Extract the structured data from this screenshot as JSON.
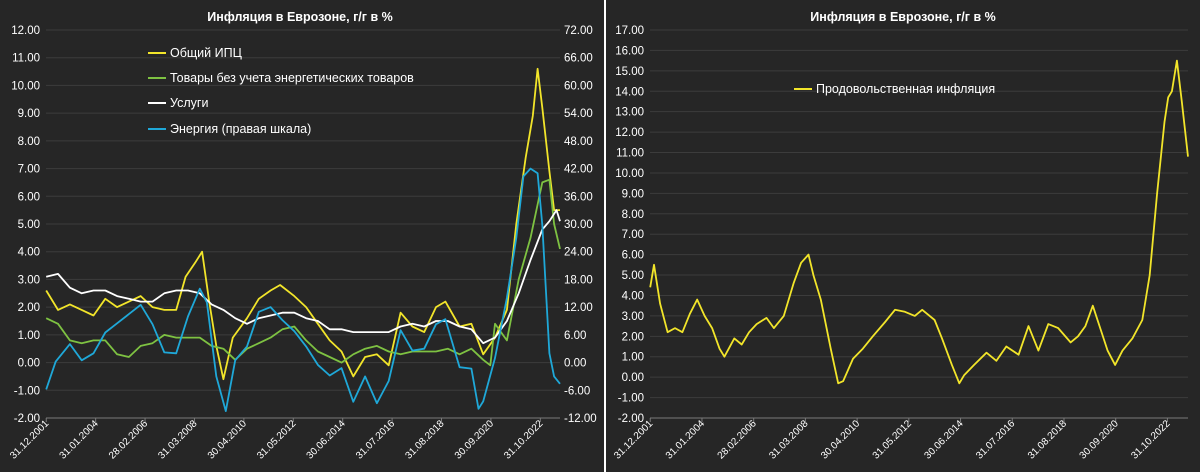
{
  "chart_data": [
    {
      "type": "line",
      "title": "Инфляция в Еврозоне, г/г в %",
      "x_tick_labels": [
        "31.12.2001",
        "31.01.2004",
        "28.02.2006",
        "31.03.2008",
        "30.04.2010",
        "31.05.2012",
        "30.06.2014",
        "31.07.2016",
        "31.08.2018",
        "30.09.2020",
        "31.10.2022"
      ],
      "x_range": [
        2001.99,
        2023.75
      ],
      "ylim_left": [
        -2,
        12
      ],
      "yticks_left": [
        "-2.00",
        "-1.00",
        "0.00",
        "1.00",
        "2.00",
        "3.00",
        "4.00",
        "5.00",
        "6.00",
        "7.00",
        "8.00",
        "9.00",
        "10.00",
        "11.00",
        "12.00"
      ],
      "ylim_right": [
        -12,
        72
      ],
      "yticks_right": [
        "-12.00",
        "-6.00",
        "0.00",
        "6.00",
        "12.00",
        "18.00",
        "24.00",
        "30.00",
        "36.00",
        "42.00",
        "48.00",
        "54.00",
        "60.00",
        "66.00",
        "72.00"
      ],
      "legend_position": "top-center",
      "series": [
        {
          "name": "Общий ИПЦ",
          "color": "#f2e52a",
          "axis": "left",
          "x": [
            2002.0,
            2002.5,
            2003.0,
            2003.5,
            2004.0,
            2004.5,
            2005.0,
            2005.5,
            2006.0,
            2006.5,
            2007.0,
            2007.5,
            2007.9,
            2008.3,
            2008.6,
            2008.9,
            2009.2,
            2009.5,
            2009.9,
            2010.5,
            2011.0,
            2011.5,
            2011.9,
            2012.5,
            2013.0,
            2013.5,
            2014.0,
            2014.5,
            2015.0,
            2015.5,
            2016.0,
            2016.5,
            2017.0,
            2017.5,
            2018.0,
            2018.5,
            2018.9,
            2019.5,
            2020.0,
            2020.5,
            2021.0,
            2021.5,
            2021.9,
            2022.3,
            2022.6,
            2022.8,
            2023.0,
            2023.3,
            2023.5,
            2023.75
          ],
          "values": [
            2.6,
            1.9,
            2.1,
            1.9,
            1.7,
            2.3,
            2.0,
            2.2,
            2.4,
            2.0,
            1.9,
            1.9,
            3.1,
            3.6,
            4.0,
            2.2,
            0.6,
            -0.6,
            0.9,
            1.6,
            2.3,
            2.6,
            2.8,
            2.4,
            2.0,
            1.4,
            0.8,
            0.4,
            -0.5,
            0.2,
            0.3,
            -0.1,
            1.8,
            1.3,
            1.1,
            2.0,
            2.2,
            1.3,
            1.4,
            0.3,
            0.9,
            1.9,
            5.0,
            7.4,
            8.9,
            10.6,
            9.2,
            6.9,
            5.5,
            5.5
          ]
        },
        {
          "name": "Товары без учета энергетических товаров",
          "color": "#7ec242",
          "axis": "left",
          "x": [
            2002.0,
            2002.5,
            2003.0,
            2003.5,
            2004.0,
            2004.5,
            2005.0,
            2005.5,
            2006.0,
            2006.5,
            2007.0,
            2007.5,
            2008.0,
            2008.5,
            2009.0,
            2009.5,
            2010.0,
            2010.5,
            2011.0,
            2011.5,
            2012.0,
            2012.5,
            2013.0,
            2013.5,
            2014.0,
            2014.5,
            2015.0,
            2015.5,
            2016.0,
            2016.5,
            2017.0,
            2017.5,
            2018.0,
            2018.5,
            2019.0,
            2019.5,
            2020.0,
            2020.5,
            2020.8,
            2021.0,
            2021.5,
            2022.0,
            2022.5,
            2023.0,
            2023.3,
            2023.5,
            2023.75
          ],
          "values": [
            1.6,
            1.4,
            0.8,
            0.7,
            0.8,
            0.8,
            0.3,
            0.2,
            0.6,
            0.7,
            1.0,
            0.9,
            0.9,
            0.9,
            0.6,
            0.5,
            0.1,
            0.5,
            0.7,
            0.9,
            1.2,
            1.3,
            0.8,
            0.4,
            0.2,
            0.0,
            0.3,
            0.5,
            0.6,
            0.4,
            0.3,
            0.4,
            0.4,
            0.4,
            0.5,
            0.3,
            0.5,
            0.1,
            -0.1,
            1.4,
            0.8,
            3.0,
            4.5,
            6.5,
            6.6,
            5.0,
            4.1
          ]
        },
        {
          "name": "Услуги",
          "color": "#ffffff",
          "axis": "left",
          "x": [
            2002.0,
            2002.5,
            2003.0,
            2003.5,
            2004.0,
            2004.5,
            2005.0,
            2005.5,
            2006.0,
            2006.5,
            2007.0,
            2007.5,
            2008.0,
            2008.5,
            2009.0,
            2009.5,
            2010.0,
            2010.5,
            2011.0,
            2011.5,
            2012.0,
            2012.5,
            2013.0,
            2013.5,
            2014.0,
            2014.5,
            2015.0,
            2015.5,
            2016.0,
            2016.5,
            2017.0,
            2017.5,
            2018.0,
            2018.5,
            2019.0,
            2019.5,
            2020.0,
            2020.5,
            2021.0,
            2021.5,
            2022.0,
            2022.5,
            2023.0,
            2023.3,
            2023.6,
            2023.75
          ],
          "values": [
            3.1,
            3.2,
            2.7,
            2.5,
            2.6,
            2.6,
            2.4,
            2.3,
            2.2,
            2.2,
            2.5,
            2.6,
            2.6,
            2.5,
            2.1,
            1.9,
            1.6,
            1.4,
            1.6,
            1.7,
            1.8,
            1.8,
            1.6,
            1.5,
            1.2,
            1.2,
            1.1,
            1.1,
            1.1,
            1.1,
            1.3,
            1.4,
            1.3,
            1.5,
            1.5,
            1.3,
            1.2,
            0.7,
            0.9,
            1.5,
            2.5,
            3.7,
            4.8,
            5.1,
            5.5,
            5.1
          ]
        },
        {
          "name": "Энергия (правая шкала)",
          "color": "#1fa8d8",
          "axis": "right",
          "x": [
            2002.0,
            2002.4,
            2003.0,
            2003.5,
            2004.0,
            2004.5,
            2005.0,
            2005.5,
            2006.0,
            2006.5,
            2007.0,
            2007.5,
            2008.0,
            2008.5,
            2008.8,
            2009.2,
            2009.6,
            2010.0,
            2010.5,
            2011.0,
            2011.5,
            2012.0,
            2012.5,
            2013.0,
            2013.5,
            2014.0,
            2014.5,
            2015.0,
            2015.5,
            2016.0,
            2016.5,
            2017.0,
            2017.5,
            2018.0,
            2018.5,
            2018.9,
            2019.5,
            2020.0,
            2020.3,
            2020.5,
            2021.0,
            2021.5,
            2021.9,
            2022.2,
            2022.5,
            2022.8,
            2023.0,
            2023.3,
            2023.5,
            2023.75
          ],
          "values": [
            -5.8,
            0.2,
            4.0,
            0.5,
            2.0,
            6.5,
            8.5,
            10.5,
            12.5,
            8.3,
            2.2,
            2.0,
            10.0,
            16.0,
            13.0,
            -3.0,
            -10.5,
            0.5,
            3.5,
            11.0,
            12.0,
            9.2,
            6.8,
            3.5,
            -0.5,
            -2.8,
            -1.2,
            -8.5,
            -3.0,
            -8.8,
            -4.0,
            7.0,
            2.6,
            3.0,
            8.3,
            9.4,
            -1.0,
            -1.3,
            -10.0,
            -8.4,
            1.0,
            14.0,
            27.0,
            40.3,
            42.0,
            41.0,
            29.8,
            2.0,
            -3.0,
            -4.6
          ]
        }
      ]
    },
    {
      "type": "line",
      "title": "Инфляция в Еврозоне, г/г в %",
      "x_tick_labels": [
        "31.12.2001",
        "31.01.2004",
        "28.02.2006",
        "31.03.2008",
        "30.04.2010",
        "31.05.2012",
        "30.06.2014",
        "31.07.2016",
        "31.08.2018",
        "30.09.2020",
        "31.10.2022"
      ],
      "x_range": [
        2001.99,
        2023.75
      ],
      "ylim": [
        -2,
        17
      ],
      "yticks": [
        "-2.00",
        "-1.00",
        "0.00",
        "1.00",
        "2.00",
        "3.00",
        "4.00",
        "5.00",
        "6.00",
        "7.00",
        "8.00",
        "9.00",
        "10.00",
        "11.00",
        "12.00",
        "13.00",
        "14.00",
        "15.00",
        "16.00",
        "17.00"
      ],
      "legend_position": "top-center",
      "series": [
        {
          "name": "Продовольственная инфляция",
          "color": "#f2e52a",
          "x": [
            2002.0,
            2002.15,
            2002.4,
            2002.7,
            2003.0,
            2003.3,
            2003.6,
            2003.9,
            2004.2,
            2004.5,
            2004.8,
            2005.0,
            2005.4,
            2005.7,
            2006.0,
            2006.3,
            2006.7,
            2007.0,
            2007.4,
            2007.8,
            2008.1,
            2008.4,
            2008.6,
            2008.9,
            2009.3,
            2009.6,
            2009.8,
            2010.2,
            2010.6,
            2011.0,
            2011.5,
            2011.9,
            2012.3,
            2012.7,
            2013.0,
            2013.5,
            2013.8,
            2014.2,
            2014.5,
            2014.7,
            2015.1,
            2015.6,
            2016.0,
            2016.4,
            2016.9,
            2017.3,
            2017.7,
            2018.1,
            2018.5,
            2019.0,
            2019.3,
            2019.6,
            2019.9,
            2020.2,
            2020.5,
            2020.8,
            2021.1,
            2021.5,
            2021.9,
            2022.2,
            2022.5,
            2022.8,
            2022.95,
            2023.1,
            2023.3,
            2023.5,
            2023.75
          ],
          "values": [
            4.4,
            5.5,
            3.6,
            2.2,
            2.4,
            2.2,
            3.1,
            3.8,
            3.0,
            2.4,
            1.4,
            1.0,
            1.9,
            1.6,
            2.2,
            2.6,
            2.9,
            2.4,
            3.0,
            4.6,
            5.6,
            6.0,
            5.0,
            3.8,
            1.4,
            -0.3,
            -0.2,
            0.9,
            1.4,
            2.0,
            2.7,
            3.3,
            3.2,
            3.0,
            3.3,
            2.8,
            1.9,
            0.6,
            -0.3,
            0.1,
            0.6,
            1.2,
            0.8,
            1.5,
            1.1,
            2.5,
            1.3,
            2.6,
            2.4,
            1.7,
            2.0,
            2.5,
            3.5,
            2.4,
            1.3,
            0.6,
            1.3,
            1.9,
            2.8,
            5.0,
            9.0,
            12.5,
            13.7,
            14.0,
            15.5,
            13.5,
            10.8
          ]
        }
      ]
    }
  ]
}
